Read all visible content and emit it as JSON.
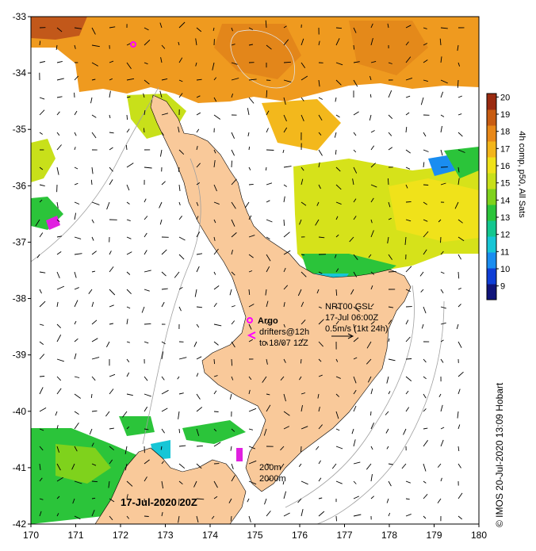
{
  "chart_data": {
    "type": "map",
    "title": "",
    "xlim": [
      170,
      180
    ],
    "ylim": [
      -42,
      -33
    ],
    "x_ticks": [
      170,
      171,
      172,
      173,
      174,
      175,
      176,
      177,
      178,
      179,
      180
    ],
    "y_ticks": [
      -33,
      -34,
      -35,
      -36,
      -37,
      -38,
      -39,
      -40,
      -41,
      -42
    ],
    "colorbar": {
      "ticks": [
        9,
        10,
        11,
        12,
        13,
        14,
        15,
        16,
        17,
        18,
        19,
        20
      ],
      "range": [
        8.2,
        20.2
      ],
      "label": "4h comp, p50, All Sats",
      "colors": [
        "#10147a",
        "#0f3ed6",
        "#1a8df0",
        "#17c6d6",
        "#13c78f",
        "#2bc43a",
        "#7fd21c",
        "#c8e01a",
        "#f0e21a",
        "#f3b51a",
        "#e88818",
        "#c85c12",
        "#9a2a10"
      ]
    },
    "annotations": {
      "argo": "Argo",
      "drifters_line1": "drifters@12h",
      "drifters_line2": "to 18/07 12Z",
      "current_line1": "NRT00 GSL",
      "current_line2": "17-Jul 06:00Z",
      "current_line3": "0.5m/s (1kt 24h)",
      "depth_line1": "200m",
      "depth_line2": "2000m",
      "date": "17-Jul-2020 20Z",
      "credit": "© IMOS 20-Jul-2020 13:09 Hobart"
    },
    "land_color": "#f9c99a",
    "sst_regions": [
      {
        "name": "north-warm",
        "value": 18
      },
      {
        "name": "northwest-corner",
        "value": 19.5
      },
      {
        "name": "east-cape",
        "value": 16
      },
      {
        "name": "bay-of-plenty",
        "value": 14
      },
      {
        "name": "south-west",
        "value": 14
      },
      {
        "name": "northland-tip",
        "value": 16.5
      }
    ]
  }
}
